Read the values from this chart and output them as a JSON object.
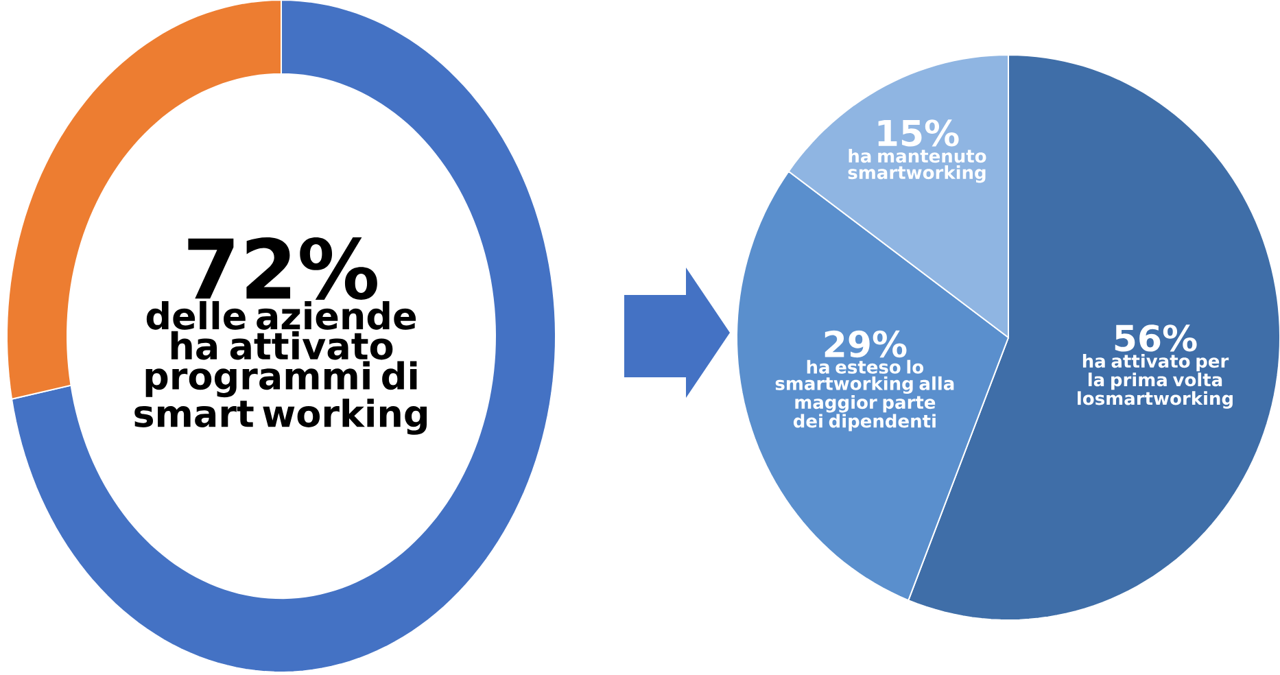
{
  "chart_data": [
    {
      "type": "donut",
      "categories": [
        null,
        null
      ],
      "values": [
        72,
        28
      ],
      "colors": [
        "#4472c4",
        "#ed7d31"
      ],
      "annotations": [
        "72%",
        "delle aziende ha attivato programmi di smart working"
      ]
    },
    {
      "type": "pie",
      "categories": [
        "ha attivato per la prima volta losmartworking",
        "ha esteso lo smartworking alla maggior parte dei dipendenti",
        "ha mantenuto smartworking"
      ],
      "values": [
        56,
        29,
        15
      ],
      "colors": [
        "#3f6ea8",
        "#5a8fcd",
        "#8fb5e2"
      ],
      "value_labels": [
        "56%",
        "29%",
        "15%"
      ]
    }
  ]
}
